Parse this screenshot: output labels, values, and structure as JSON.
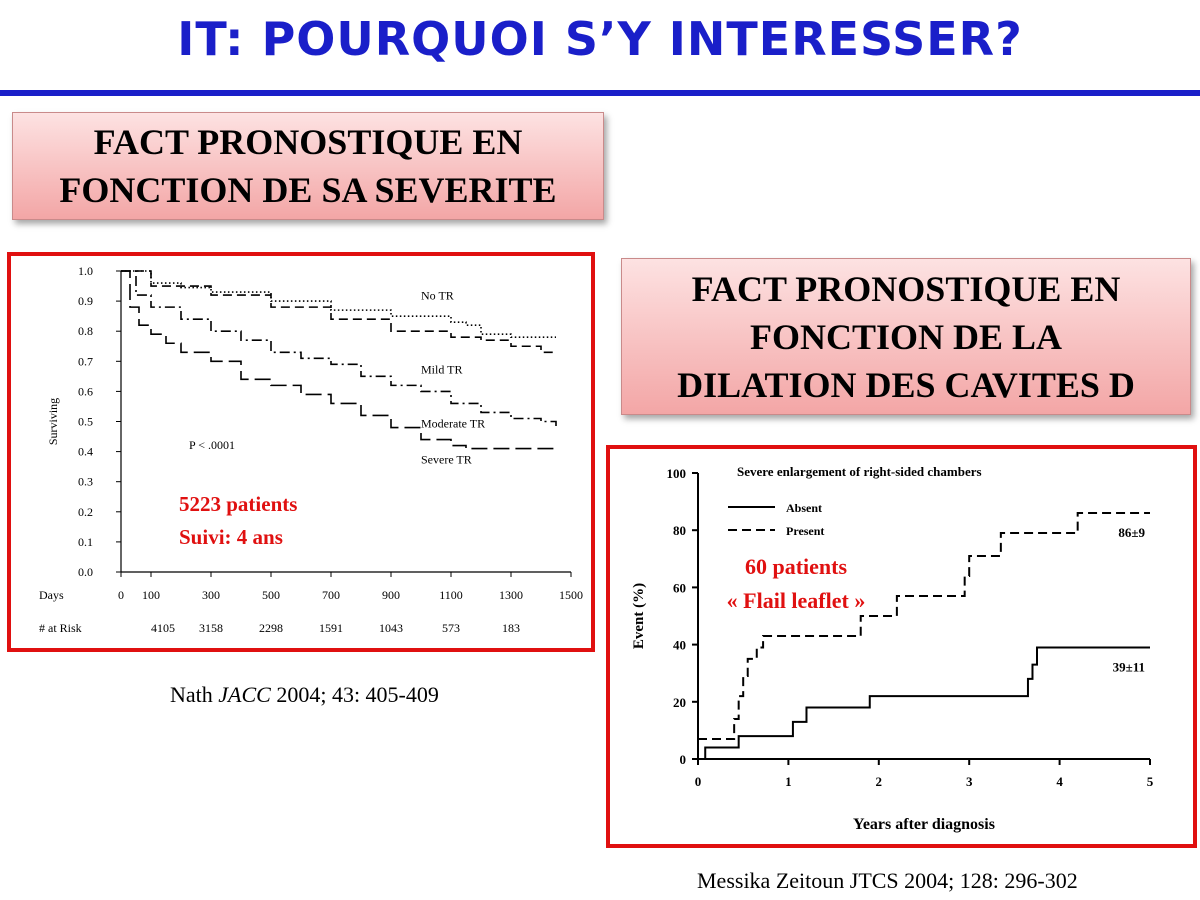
{
  "slide": {
    "title": "IT: POURQUOI S’Y INTERESSER?",
    "accent_color": "#1a1fc9",
    "frame_color": "#e01010",
    "box1": {
      "line1": "FACT PRONOSTIQUE EN",
      "line2": "FONCTION DE SA SEVERITE"
    },
    "box2": {
      "line1": "FACT PRONOSTIQUE EN",
      "line2": "FONCTION DE LA",
      "line3": "DILATION DES CAVITES D"
    },
    "citation1": {
      "author": "Nath ",
      "journal": "JACC",
      "rest": " 2004; 43: 405-409"
    },
    "citation2": "Messika Zeitoun JTCS 2004; 128: 296-302"
  },
  "chart_data": [
    {
      "type": "line",
      "ylabel": "Surviving",
      "xlabel": "Days",
      "xlim": [
        0,
        1500
      ],
      "ylim": [
        0,
        1.0
      ],
      "y_ticks": [
        "0.0",
        "0.1",
        "0.2",
        "0.3",
        "0.4",
        "0.5",
        "0.6",
        "0.7",
        "0.8",
        "0.9",
        "1.0"
      ],
      "x_ticks": [
        "0",
        "100",
        "300",
        "500",
        "700",
        "900",
        "1100",
        "1300",
        "1500"
      ],
      "annotation": "P < .0001",
      "overlay": {
        "line1": "5223 patients",
        "line2": "Suivi: 4 ans"
      },
      "at_risk_label": "# at Risk",
      "at_risk_values": [
        "4105",
        "3158",
        "2298",
        "1591",
        "1043",
        "573",
        "183"
      ],
      "at_risk_days": [
        100,
        300,
        500,
        700,
        900,
        1100,
        1300
      ],
      "series": [
        {
          "name": "No TR",
          "dash": "dotted",
          "points": [
            [
              0,
              1.0
            ],
            [
              100,
              0.96
            ],
            [
              200,
              0.945
            ],
            [
              300,
              0.93
            ],
            [
              500,
              0.9
            ],
            [
              700,
              0.87
            ],
            [
              900,
              0.85
            ],
            [
              1100,
              0.83
            ],
            [
              1150,
              0.82
            ],
            [
              1200,
              0.79
            ],
            [
              1300,
              0.78
            ],
            [
              1450,
              0.78
            ]
          ]
        },
        {
          "name": "Mild TR",
          "dash": "dashed",
          "points": [
            [
              0,
              1.0
            ],
            [
              100,
              0.95
            ],
            [
              300,
              0.92
            ],
            [
              500,
              0.88
            ],
            [
              700,
              0.84
            ],
            [
              900,
              0.8
            ],
            [
              1100,
              0.78
            ],
            [
              1200,
              0.77
            ],
            [
              1300,
              0.75
            ],
            [
              1400,
              0.73
            ],
            [
              1450,
              0.73
            ]
          ]
        },
        {
          "name": "Moderate TR",
          "dash": "dashdot",
          "points": [
            [
              0,
              1.0
            ],
            [
              50,
              0.92
            ],
            [
              100,
              0.88
            ],
            [
              200,
              0.84
            ],
            [
              300,
              0.8
            ],
            [
              400,
              0.77
            ],
            [
              500,
              0.73
            ],
            [
              600,
              0.71
            ],
            [
              700,
              0.69
            ],
            [
              800,
              0.65
            ],
            [
              900,
              0.62
            ],
            [
              1000,
              0.6
            ],
            [
              1100,
              0.56
            ],
            [
              1200,
              0.53
            ],
            [
              1300,
              0.51
            ],
            [
              1400,
              0.5
            ],
            [
              1450,
              0.48
            ]
          ]
        },
        {
          "name": "Severe TR",
          "dash": "longdash",
          "points": [
            [
              0,
              1.0
            ],
            [
              30,
              0.88
            ],
            [
              60,
              0.82
            ],
            [
              100,
              0.79
            ],
            [
              150,
              0.76
            ],
            [
              200,
              0.73
            ],
            [
              300,
              0.7
            ],
            [
              400,
              0.64
            ],
            [
              500,
              0.62
            ],
            [
              600,
              0.59
            ],
            [
              700,
              0.56
            ],
            [
              800,
              0.52
            ],
            [
              900,
              0.48
            ],
            [
              1000,
              0.44
            ],
            [
              1100,
              0.42
            ],
            [
              1150,
              0.41
            ],
            [
              1200,
              0.41
            ],
            [
              1450,
              0.41
            ]
          ]
        }
      ],
      "series_labels": [
        {
          "name": "No TR",
          "at": [
            1000,
            0.905
          ]
        },
        {
          "name": "Mild TR",
          "at": [
            1000,
            0.66
          ]
        },
        {
          "name": "Moderate TR",
          "at": [
            1000,
            0.48
          ]
        },
        {
          "name": "Severe TR",
          "at": [
            1000,
            0.36
          ]
        }
      ]
    },
    {
      "type": "line",
      "title": "Severe enlargement of right-sided chambers",
      "xlabel": "Years after diagnosis",
      "ylabel": "Event (%)",
      "xlim": [
        0,
        5
      ],
      "ylim": [
        0,
        100
      ],
      "x_ticks": [
        "0",
        "1",
        "2",
        "3",
        "4",
        "5"
      ],
      "y_ticks": [
        "0",
        "20",
        "40",
        "60",
        "80",
        "100"
      ],
      "overlay": {
        "line1": "60 patients",
        "line2": "« Flail leaflet »"
      },
      "series": [
        {
          "name": "Absent",
          "dash": "solid",
          "end_label": "39±11",
          "points": [
            [
              0,
              0
            ],
            [
              0.08,
              4
            ],
            [
              0.45,
              8
            ],
            [
              1.05,
              13
            ],
            [
              1.2,
              18
            ],
            [
              1.9,
              22
            ],
            [
              3.65,
              28
            ],
            [
              3.7,
              33
            ],
            [
              3.75,
              39
            ],
            [
              5,
              39
            ]
          ]
        },
        {
          "name": "Present",
          "dash": "dashed",
          "end_label": "86±9",
          "points": [
            [
              0,
              7
            ],
            [
              0.4,
              14
            ],
            [
              0.45,
              22
            ],
            [
              0.5,
              29
            ],
            [
              0.55,
              35
            ],
            [
              0.65,
              39
            ],
            [
              0.72,
              43
            ],
            [
              1.8,
              50
            ],
            [
              2.2,
              57
            ],
            [
              2.95,
              64
            ],
            [
              3.0,
              71
            ],
            [
              3.35,
              79
            ],
            [
              4.2,
              86
            ],
            [
              5,
              86
            ]
          ]
        }
      ]
    }
  ]
}
